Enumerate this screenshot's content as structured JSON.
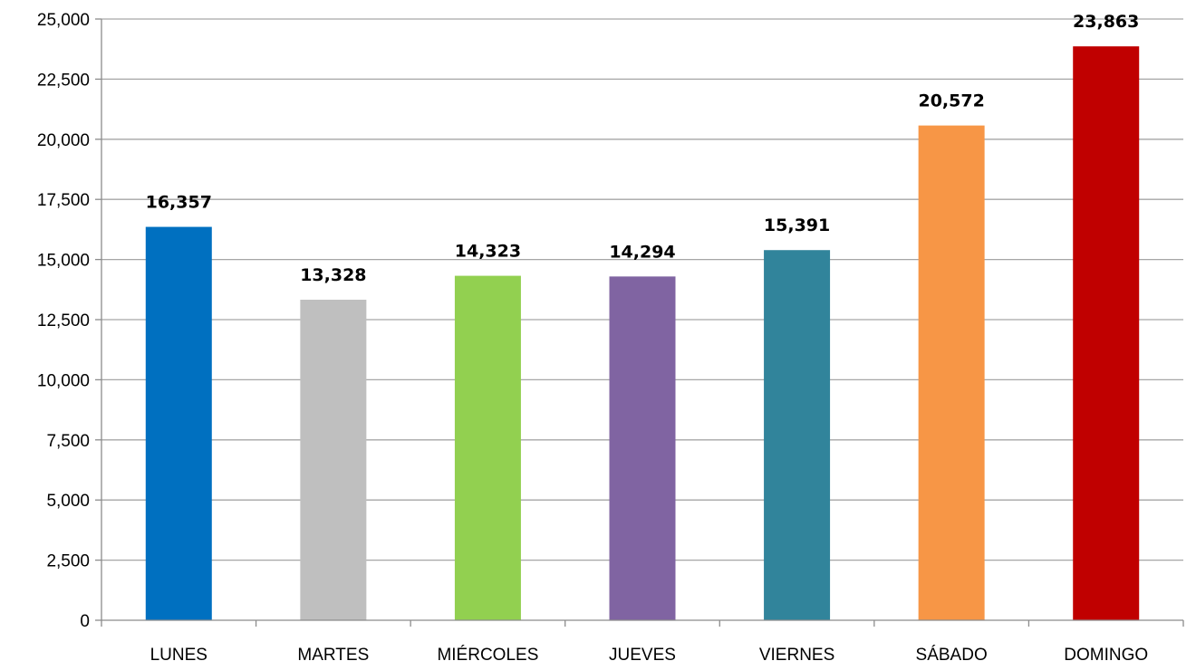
{
  "chart_data": {
    "type": "bar",
    "title": "",
    "xlabel": "",
    "ylabel": "",
    "categories": [
      "LUNES",
      "MARTES",
      "MIÉRCOLES",
      "JUEVES",
      "VIERNES",
      "SÁBADO",
      "DOMINGO"
    ],
    "values": [
      16357,
      13328,
      14323,
      14294,
      15391,
      20572,
      23863
    ],
    "value_labels": [
      "16,357",
      "13,328",
      "14,323",
      "14,294",
      "15,391",
      "20,572",
      "23,863"
    ],
    "colors": [
      "#0070C0",
      "#BFBFBF",
      "#92D050",
      "#8064A2",
      "#31849B",
      "#F79646",
      "#C00000"
    ],
    "ylim": [
      0,
      25000
    ],
    "yticks": [
      0,
      2500,
      5000,
      7500,
      10000,
      12500,
      15000,
      17500,
      20000,
      22500,
      25000
    ],
    "ytick_labels": [
      "0",
      "2,500",
      "5,000",
      "7,500",
      "10,000",
      "12,500",
      "15,000",
      "17,500",
      "20,000",
      "22,500",
      "25,000"
    ],
    "grid": true,
    "grid_color": "#A6A6A6",
    "axis_color": "#8C8C8C",
    "legend": "none"
  }
}
